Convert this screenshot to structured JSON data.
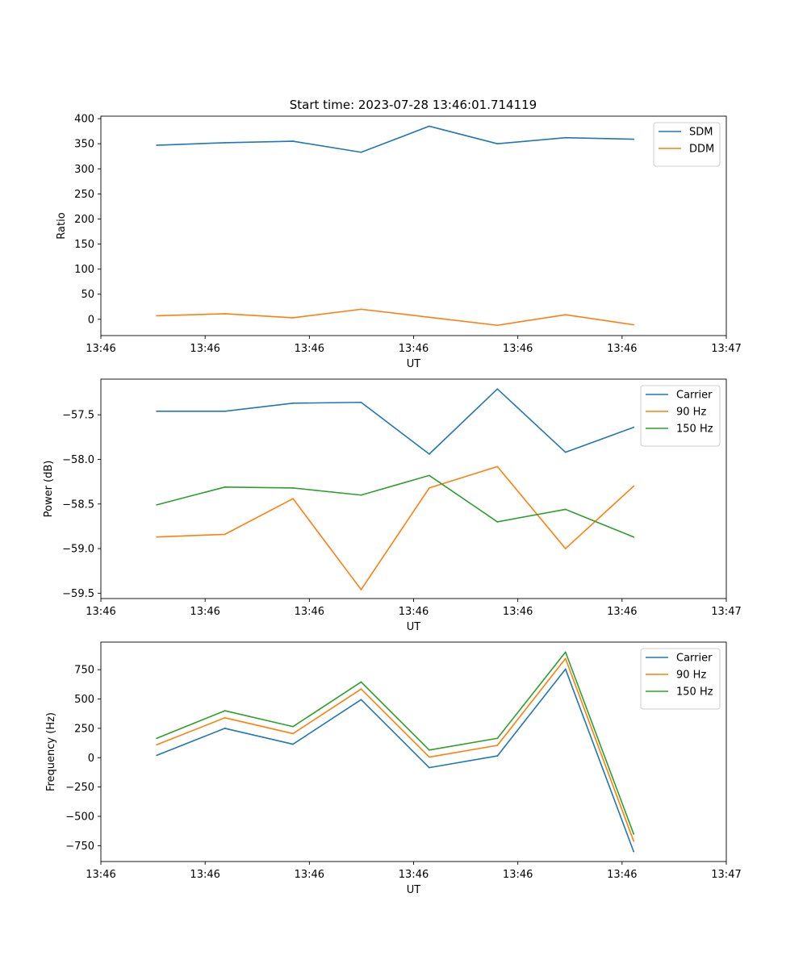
{
  "figure_title": "Start time: 2023-07-28 13:46:01.714119",
  "colors": {
    "blue": "#1f77b4",
    "orange": "#ff7f0e",
    "green": "#2ca02c"
  },
  "chart_data": [
    {
      "type": "line",
      "title": "Start time: 2023-07-28 13:46:01.714119",
      "xlabel": "UT",
      "ylabel": "Ratio",
      "x": [
        1,
        2,
        3,
        4,
        5,
        6,
        7,
        8
      ],
      "xlim": [
        0.18,
        9.36
      ],
      "xticks": [
        0.18,
        1.71,
        3.24,
        4.77,
        6.3,
        7.83,
        9.36
      ],
      "xtick_labels": [
        "13:46",
        "13:46",
        "13:46",
        "13:46",
        "13:46",
        "13:46",
        "13:47"
      ],
      "ylim": [
        -32.5,
        405
      ],
      "yticks": [
        0,
        50,
        100,
        150,
        200,
        250,
        300,
        350,
        400
      ],
      "ytick_labels": [
        "0",
        "50",
        "100",
        "150",
        "200",
        "250",
        "300",
        "350",
        "400"
      ],
      "legend": "top-right",
      "series": [
        {
          "name": "SDM",
          "color": "#1f77b4",
          "values": [
            347,
            352,
            355,
            333,
            385,
            350,
            362,
            359
          ]
        },
        {
          "name": "DDM",
          "color": "#ff7f0e",
          "values": [
            7,
            11,
            3,
            20,
            4,
            -12,
            9,
            -11
          ]
        }
      ]
    },
    {
      "type": "line",
      "title": "",
      "xlabel": "UT",
      "ylabel": "Power (dB)",
      "x": [
        1,
        2,
        3,
        4,
        5,
        6,
        7,
        8
      ],
      "xlim": [
        0.18,
        9.36
      ],
      "xticks": [
        0.18,
        1.71,
        3.24,
        4.77,
        6.3,
        7.83,
        9.36
      ],
      "xtick_labels": [
        "13:46",
        "13:46",
        "13:46",
        "13:46",
        "13:46",
        "13:46",
        "13:47"
      ],
      "ylim": [
        -59.56,
        -57.1
      ],
      "yticks": [
        -59.5,
        -59.0,
        -58.5,
        -58.0,
        -57.5
      ],
      "ytick_labels": [
        "−59.5",
        "−59.0",
        "−58.5",
        "−58.0",
        "−57.5"
      ],
      "legend": "top-right",
      "series": [
        {
          "name": "Carrier",
          "color": "#1f77b4",
          "values": [
            -57.46,
            -57.46,
            -57.37,
            -57.36,
            -57.94,
            -57.21,
            -57.92,
            -57.64
          ]
        },
        {
          "name": "90 Hz",
          "color": "#ff7f0e",
          "values": [
            -58.87,
            -58.84,
            -58.44,
            -59.46,
            -58.32,
            -58.08,
            -59.0,
            -58.3
          ]
        },
        {
          "name": "150 Hz",
          "color": "#2ca02c",
          "values": [
            -58.51,
            -58.31,
            -58.32,
            -58.4,
            -58.18,
            -58.7,
            -58.56,
            -58.87
          ]
        }
      ]
    },
    {
      "type": "line",
      "title": "",
      "xlabel": "UT",
      "ylabel": "Frequency (Hz)",
      "x": [
        1,
        2,
        3,
        4,
        5,
        6,
        7,
        8
      ],
      "xlim": [
        0.18,
        9.36
      ],
      "xticks": [
        0.18,
        1.71,
        3.24,
        4.77,
        6.3,
        7.83,
        9.36
      ],
      "xtick_labels": [
        "13:46",
        "13:46",
        "13:46",
        "13:46",
        "13:46",
        "13:46",
        "13:47"
      ],
      "ylim": [
        -885,
        985
      ],
      "yticks": [
        -750,
        -500,
        -250,
        0,
        250,
        500,
        750
      ],
      "ytick_labels": [
        "−750",
        "−500",
        "−250",
        "0",
        "250",
        "500",
        "750"
      ],
      "legend": "top-right",
      "series": [
        {
          "name": "Carrier",
          "color": "#1f77b4",
          "values": [
            20,
            250,
            115,
            495,
            -85,
            15,
            755,
            -800
          ]
        },
        {
          "name": "90 Hz",
          "color": "#ff7f0e",
          "values": [
            110,
            340,
            205,
            585,
            5,
            105,
            845,
            -710
          ]
        },
        {
          "name": "150 Hz",
          "color": "#2ca02c",
          "values": [
            165,
            400,
            265,
            645,
            65,
            165,
            900,
            -650
          ]
        }
      ]
    }
  ]
}
